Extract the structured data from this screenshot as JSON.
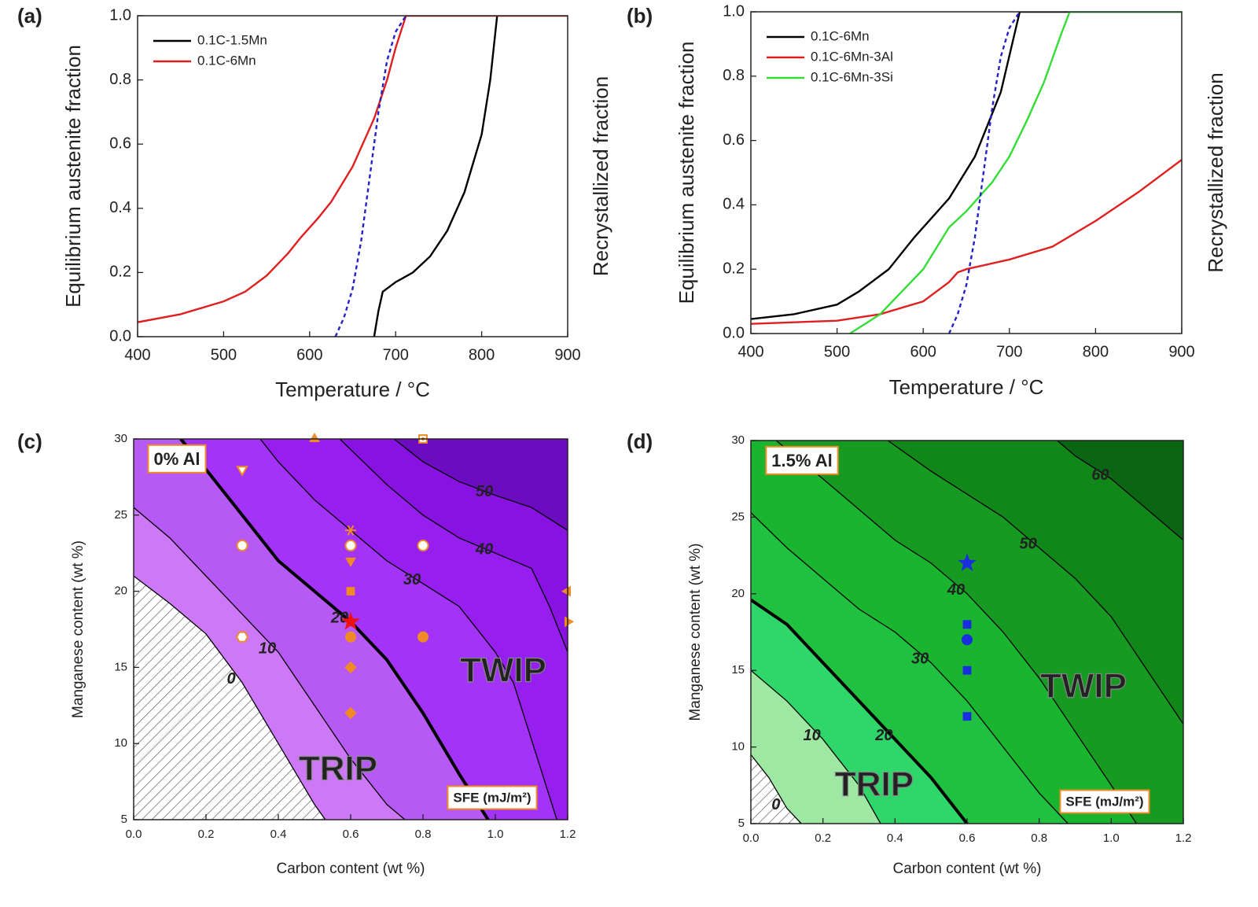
{
  "chart_data": [
    {
      "type": "line",
      "label": "(a)",
      "xlabel": "Temperature / °C",
      "ylabel": "Equilibrium austenite fraction",
      "y2label": "Recrystallized fraction",
      "xlim": [
        400,
        900
      ],
      "xticks": [
        400,
        500,
        600,
        700,
        800,
        900
      ],
      "ylim": [
        0,
        1
      ],
      "yticks": [
        {
          "value": 0,
          "label": "0.0"
        },
        0.2,
        0.4,
        0.6,
        0.8,
        {
          "value": 1,
          "label": "1.0"
        }
      ],
      "y2lim": [
        0,
        1
      ],
      "legend": "upper left",
      "series": [
        {
          "name": "0.1C-1.5Mn",
          "color": "#000000",
          "x": [
            675,
            680,
            685,
            690,
            700,
            720,
            740,
            760,
            780,
            800,
            810,
            818
          ],
          "values": [
            0,
            0.08,
            0.14,
            0.15,
            0.17,
            0.2,
            0.25,
            0.33,
            0.45,
            0.63,
            0.8,
            1.0
          ]
        },
        {
          "name": "0.1C-6Mn",
          "color": "#e02020",
          "x": [
            400,
            450,
            500,
            525,
            550,
            575,
            590,
            610,
            625,
            650,
            675,
            690,
            700,
            712,
            900
          ],
          "values": [
            0.045,
            0.07,
            0.11,
            0.14,
            0.19,
            0.26,
            0.31,
            0.37,
            0.42,
            0.53,
            0.68,
            0.8,
            0.9,
            1.0,
            1.0
          ]
        },
        {
          "color": "#2222c8",
          "dashed": true,
          "axis": "y2",
          "x": [
            630,
            640,
            650,
            660,
            670,
            680,
            690,
            700,
            712
          ],
          "values": [
            0,
            0.06,
            0.15,
            0.3,
            0.5,
            0.7,
            0.86,
            0.95,
            1.0
          ]
        }
      ]
    },
    {
      "type": "line",
      "label": "(b)",
      "xlabel": "Temperature / °C",
      "ylabel": "Equilibrium austenite fraction",
      "y2label": "Recrystallized fraction",
      "xlim": [
        400,
        900
      ],
      "xticks": [
        400,
        500,
        600,
        700,
        800,
        900
      ],
      "ylim": [
        0,
        1
      ],
      "yticks": [
        {
          "value": 0,
          "label": "0.0"
        },
        0.2,
        0.4,
        0.6,
        0.8,
        {
          "value": 1,
          "label": "1.0"
        }
      ],
      "y2lim": [
        0,
        1
      ],
      "legend": "upper left",
      "series": [
        {
          "name": "0.1C-6Mn",
          "color": "#000000",
          "x": [
            400,
            450,
            500,
            525,
            560,
            590,
            600,
            630,
            660,
            690,
            712,
            900
          ],
          "values": [
            0.045,
            0.06,
            0.09,
            0.13,
            0.2,
            0.3,
            0.33,
            0.42,
            0.55,
            0.75,
            1.0,
            1.0
          ]
        },
        {
          "name": "0.1C-6Mn-3Al",
          "color": "#e02020",
          "x": [
            400,
            500,
            550,
            600,
            630,
            640,
            650,
            700,
            750,
            800,
            850,
            900
          ],
          "values": [
            0.03,
            0.04,
            0.06,
            0.1,
            0.16,
            0.19,
            0.2,
            0.23,
            0.27,
            0.35,
            0.44,
            0.54
          ]
        },
        {
          "name": "0.1C-6Mn-3Si",
          "color": "#33dd33",
          "x": [
            515,
            550,
            600,
            630,
            650,
            680,
            700,
            720,
            740,
            760,
            770,
            900
          ],
          "values": [
            0,
            0.06,
            0.2,
            0.33,
            0.38,
            0.47,
            0.55,
            0.66,
            0.78,
            0.93,
            1.0,
            1.0
          ]
        },
        {
          "color": "#2222c8",
          "dashed": true,
          "axis": "y2",
          "x": [
            630,
            640,
            650,
            660,
            670,
            680,
            690,
            700,
            712
          ],
          "values": [
            0,
            0.06,
            0.15,
            0.3,
            0.5,
            0.7,
            0.86,
            0.95,
            1.0
          ]
        }
      ]
    },
    {
      "type": "contour",
      "label": "(c)",
      "xlabel": "Carbon content (wt %)",
      "ylabel": "Manganese content (wt %)",
      "xlim": [
        0,
        1.2
      ],
      "xticks": [
        {
          "value": 0,
          "label": "0.0"
        },
        0.2,
        0.4,
        0.6,
        0.8,
        {
          "value": 1,
          "label": "1.0"
        },
        1.2
      ],
      "ylim": [
        5,
        30
      ],
      "yticks": [
        5,
        10,
        15,
        20,
        25,
        30
      ],
      "contours": [
        {
          "level": 0,
          "color": "#cd79f7",
          "x": [
            0,
            0.1,
            0.2,
            0.3,
            0.4,
            0.5,
            0.53
          ],
          "y": [
            21,
            19.2,
            17.2,
            14,
            10,
            6,
            5
          ]
        },
        {
          "level": 10,
          "color": "#b659f5",
          "x": [
            0,
            0.1,
            0.2,
            0.3,
            0.4,
            0.5,
            0.6,
            0.7,
            0.75
          ],
          "y": [
            25.5,
            23.5,
            21,
            18.5,
            16,
            12.5,
            9,
            6,
            5
          ]
        },
        {
          "level": 20,
          "color": "#a233f7",
          "bold": true,
          "x": [
            0.13,
            0.2,
            0.3,
            0.4,
            0.5,
            0.6,
            0.7,
            0.8,
            0.9,
            0.98
          ],
          "y": [
            30,
            28,
            25,
            22,
            20,
            18,
            15.5,
            12,
            8,
            5
          ]
        },
        {
          "level": 30,
          "color": "#961ff0",
          "x": [
            0.35,
            0.4,
            0.5,
            0.6,
            0.7,
            0.8,
            0.9,
            1.0,
            1.05,
            1.13,
            1.17
          ],
          "y": [
            30,
            28.5,
            26,
            24,
            22,
            20.5,
            19,
            16,
            14,
            8,
            5
          ]
        },
        {
          "level": 40,
          "color": "#8812e2",
          "x": [
            0.57,
            0.7,
            0.8,
            0.9,
            1.0,
            1.1,
            1.15,
            1.2
          ],
          "y": [
            30,
            27,
            25,
            23.5,
            22.5,
            21.5,
            19,
            16
          ]
        },
        {
          "level": 50,
          "color": "#6c0cc0",
          "x": [
            0.72,
            0.8,
            0.9,
            1.0,
            1.1,
            1.2
          ],
          "y": [
            30,
            28.5,
            27.2,
            26.3,
            25.5,
            24
          ]
        }
      ],
      "points": {
        "x": [
          0.5,
          0.8,
          0.3,
          0.3,
          0.3,
          0.6,
          0.6,
          0.6,
          0.6,
          0.6,
          0.6,
          0.6,
          0.6,
          0.8,
          0.8,
          1.2,
          1.2
        ],
        "y": [
          30,
          30,
          28,
          23,
          17,
          24,
          23,
          22,
          20,
          18,
          17,
          15,
          12,
          23,
          17,
          20,
          18
        ],
        "markers": [
          "triangle-up",
          "square-dotted",
          "triangle-down-open",
          "circle-open",
          "hexagon-open",
          "asterisk",
          "circle-open",
          "triangle-down",
          "square",
          "star",
          "circle",
          "diamond",
          "diamond",
          "circle-open",
          "circle",
          "triangle-left",
          "triangle-right"
        ],
        "colors": [
          "#f08a24",
          "#f08a24",
          "#f08a24",
          "#f08a24",
          "#f08a24",
          "#f08a24",
          "#f08a24",
          "#f08a24",
          "#f08a24",
          "#ee1111",
          "#f08a24",
          "#f08a24",
          "#f08a24",
          "#f08a24",
          "#f08a24",
          "#f08a24",
          "#f08a24"
        ]
      },
      "annotations": [
        "0% Al",
        "TRIP",
        "TWIP",
        "SFE (mJ/m²)"
      ]
    },
    {
      "type": "contour",
      "label": "(d)",
      "xlabel": "Carbon content (wt %)",
      "ylabel": "Manganese content (wt %)",
      "xlim": [
        0,
        1.2
      ],
      "xticks": [
        {
          "value": 0,
          "label": "0.0"
        },
        0.2,
        0.4,
        0.6,
        0.8,
        {
          "value": 1,
          "label": "1.0"
        },
        1.2
      ],
      "ylim": [
        5,
        30
      ],
      "yticks": [
        5,
        10,
        15,
        20,
        25,
        30
      ],
      "contours": [
        {
          "level": 0,
          "color": "#9ee8a4",
          "x": [
            0,
            0.05,
            0.1,
            0.14
          ],
          "y": [
            9.5,
            8,
            6,
            5
          ]
        },
        {
          "level": 10,
          "color": "#2fd66a",
          "x": [
            0,
            0.1,
            0.2,
            0.3,
            0.36
          ],
          "y": [
            15,
            13,
            10.5,
            7.5,
            5
          ]
        },
        {
          "level": 20,
          "color": "#20c040",
          "bold": true,
          "x": [
            0,
            0.1,
            0.2,
            0.3,
            0.4,
            0.5,
            0.55,
            0.6
          ],
          "y": [
            19.6,
            18,
            15.5,
            13,
            10.5,
            8,
            6.5,
            5
          ]
        },
        {
          "level": 30,
          "color": "#1ab52e",
          "x": [
            0,
            0.1,
            0.2,
            0.3,
            0.4,
            0.5,
            0.6,
            0.7,
            0.8,
            0.88
          ],
          "y": [
            25.3,
            23,
            21,
            19,
            17.5,
            15.5,
            13,
            10,
            7,
            5
          ]
        },
        {
          "level": 40,
          "color": "#169a22",
          "x": [
            0.07,
            0.2,
            0.3,
            0.4,
            0.5,
            0.6,
            0.7,
            0.8,
            0.9,
            1.0,
            1.07
          ],
          "y": [
            30,
            27.5,
            25.5,
            23.5,
            22,
            20,
            17.5,
            14.5,
            11,
            7.5,
            5
          ]
        },
        {
          "level": 50,
          "color": "#11871a",
          "x": [
            0.38,
            0.5,
            0.6,
            0.7,
            0.8,
            0.9,
            1.0,
            1.1,
            1.2
          ],
          "y": [
            30,
            28,
            26.5,
            25,
            23,
            21,
            18.5,
            15,
            11.5
          ]
        },
        {
          "level": 60,
          "color": "#0a6612",
          "x": [
            0.85,
            0.9,
            1.0,
            1.1,
            1.2
          ],
          "y": [
            30,
            29,
            27.5,
            25.5,
            23.5
          ]
        }
      ],
      "points": {
        "x": [
          0.6,
          0.6,
          0.6,
          0.6,
          0.6
        ],
        "y": [
          22,
          18,
          17,
          15,
          12
        ],
        "markers": [
          "star",
          "square",
          "circle",
          "square",
          "square"
        ],
        "colors": [
          "#1a2ee0",
          "#1a2ee0",
          "#1a2ee0",
          "#1a2ee0",
          "#1a2ee0"
        ]
      },
      "annotations": [
        "1.5% Al",
        "TRIP",
        "TWIP",
        "SFE (mJ/m²)"
      ]
    }
  ]
}
